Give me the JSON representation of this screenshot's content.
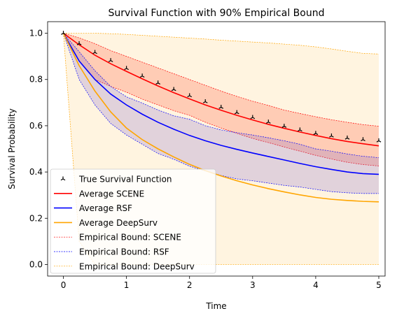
{
  "chart_data": {
    "type": "line",
    "title": "Survival Function with 90% Empirical Bound",
    "xlabel": "Time",
    "ylabel": "Survival Probability",
    "xlim": [
      -0.25,
      5.1
    ],
    "ylim": [
      -0.05,
      1.05
    ],
    "x_ticks": [
      0,
      1,
      2,
      3,
      4,
      5
    ],
    "x_tick_labels": [
      "0",
      "1",
      "2",
      "3",
      "4",
      "5"
    ],
    "y_ticks": [
      0.0,
      0.2,
      0.4,
      0.6,
      0.8,
      1.0
    ],
    "y_tick_labels": [
      "0.0",
      "0.2",
      "0.4",
      "0.6",
      "0.8",
      "1.0"
    ],
    "grid": false,
    "legend": {
      "position": "lower-left"
    },
    "colors": {
      "true": "#000000",
      "scene": "#ff0000",
      "rsf": "#0000ff",
      "deepsurv": "#ffa500"
    },
    "x": [
      0,
      0.25,
      0.5,
      0.75,
      1,
      1.25,
      1.5,
      1.75,
      2,
      2.25,
      2.5,
      2.75,
      3,
      3.25,
      3.5,
      3.75,
      4,
      4.25,
      4.5,
      4.75,
      5
    ],
    "series": [
      {
        "name": "True Survival Function",
        "key": "true",
        "style": "marker",
        "values": [
          1.0,
          0.955,
          0.917,
          0.882,
          0.848,
          0.815,
          0.785,
          0.757,
          0.73,
          0.704,
          0.68,
          0.657,
          0.636,
          0.616,
          0.598,
          0.582,
          0.567,
          0.556,
          0.547,
          0.54,
          0.535
        ]
      },
      {
        "name": "Average SCENE",
        "key": "scene",
        "style": "solid",
        "values": [
          1.0,
          0.95,
          0.905,
          0.868,
          0.835,
          0.803,
          0.772,
          0.743,
          0.716,
          0.69,
          0.667,
          0.645,
          0.625,
          0.606,
          0.589,
          0.573,
          0.558,
          0.544,
          0.532,
          0.522,
          0.513
        ]
      },
      {
        "name": "Average RSF",
        "key": "rsf",
        "style": "solid",
        "values": [
          1.0,
          0.88,
          0.8,
          0.737,
          0.69,
          0.65,
          0.615,
          0.585,
          0.558,
          0.535,
          0.515,
          0.498,
          0.482,
          0.467,
          0.452,
          0.437,
          0.423,
          0.411,
          0.4,
          0.393,
          0.39
        ]
      },
      {
        "name": "Average DeepSurv",
        "key": "deepsurv",
        "style": "solid",
        "values": [
          1.0,
          0.86,
          0.75,
          0.66,
          0.59,
          0.54,
          0.5,
          0.465,
          0.433,
          0.406,
          0.383,
          0.362,
          0.344,
          0.328,
          0.314,
          0.301,
          0.29,
          0.282,
          0.277,
          0.273,
          0.271
        ]
      }
    ],
    "bounds": [
      {
        "name": "Empirical Bound: SCENE",
        "key": "scene",
        "upper": [
          1.0,
          0.98,
          0.955,
          0.925,
          0.9,
          0.875,
          0.85,
          0.825,
          0.8,
          0.775,
          0.75,
          0.727,
          0.706,
          0.688,
          0.668,
          0.653,
          0.639,
          0.626,
          0.615,
          0.605,
          0.598
        ],
        "lower": [
          1.0,
          0.88,
          0.8,
          0.77,
          0.745,
          0.715,
          0.69,
          0.665,
          0.645,
          0.615,
          0.59,
          0.567,
          0.545,
          0.527,
          0.508,
          0.49,
          0.472,
          0.456,
          0.442,
          0.432,
          0.426
        ]
      },
      {
        "name": "Empirical Bound: RSF",
        "key": "rsf",
        "upper": [
          1.0,
          0.92,
          0.838,
          0.77,
          0.725,
          0.698,
          0.668,
          0.643,
          0.628,
          0.6,
          0.582,
          0.57,
          0.56,
          0.548,
          0.535,
          0.52,
          0.5,
          0.49,
          0.478,
          0.468,
          0.462
        ],
        "lower": [
          1.0,
          0.8,
          0.69,
          0.61,
          0.56,
          0.52,
          0.48,
          0.455,
          0.425,
          0.405,
          0.385,
          0.37,
          0.362,
          0.352,
          0.342,
          0.335,
          0.325,
          0.315,
          0.31,
          0.307,
          0.307
        ]
      },
      {
        "name": "Empirical Bound: DeepSurv",
        "key": "deepsurv",
        "upper": [
          1.0,
          1.0,
          1.0,
          0.998,
          0.995,
          0.991,
          0.987,
          0.983,
          0.979,
          0.975,
          0.97,
          0.966,
          0.962,
          0.958,
          0.953,
          0.948,
          0.941,
          0.932,
          0.922,
          0.913,
          0.91
        ],
        "lower": [
          1.0,
          0.1,
          0.0,
          0.0,
          0.0,
          0.0,
          0.0,
          0.0,
          0.0,
          0.0,
          0.0,
          0.0,
          0.0,
          0.0,
          0.0,
          0.0,
          0.0,
          0.0,
          0.0,
          0.0,
          0.0
        ]
      }
    ]
  }
}
